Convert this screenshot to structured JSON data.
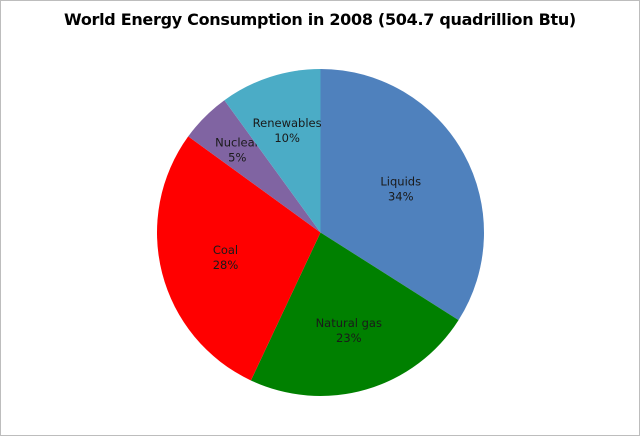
{
  "chart_data": {
    "type": "pie",
    "title": "World Energy Consumption in 2008 (504.7 quadrillion Btu)",
    "categories": [
      "Liquids",
      "Natural gas",
      "Coal",
      "Nuclear",
      "Renewables"
    ],
    "values": [
      34,
      23,
      28,
      5,
      10
    ],
    "labels": [
      "34%",
      "23%",
      "28%",
      "5%",
      "10%"
    ],
    "colors": [
      "#4F81BD",
      "#008000",
      "#FF0000",
      "#8064A2",
      "#4BACC6"
    ],
    "start_angle_deg": 0,
    "direction": "clockwise",
    "legend": "none",
    "data_labels": "inside: category name and percent"
  }
}
